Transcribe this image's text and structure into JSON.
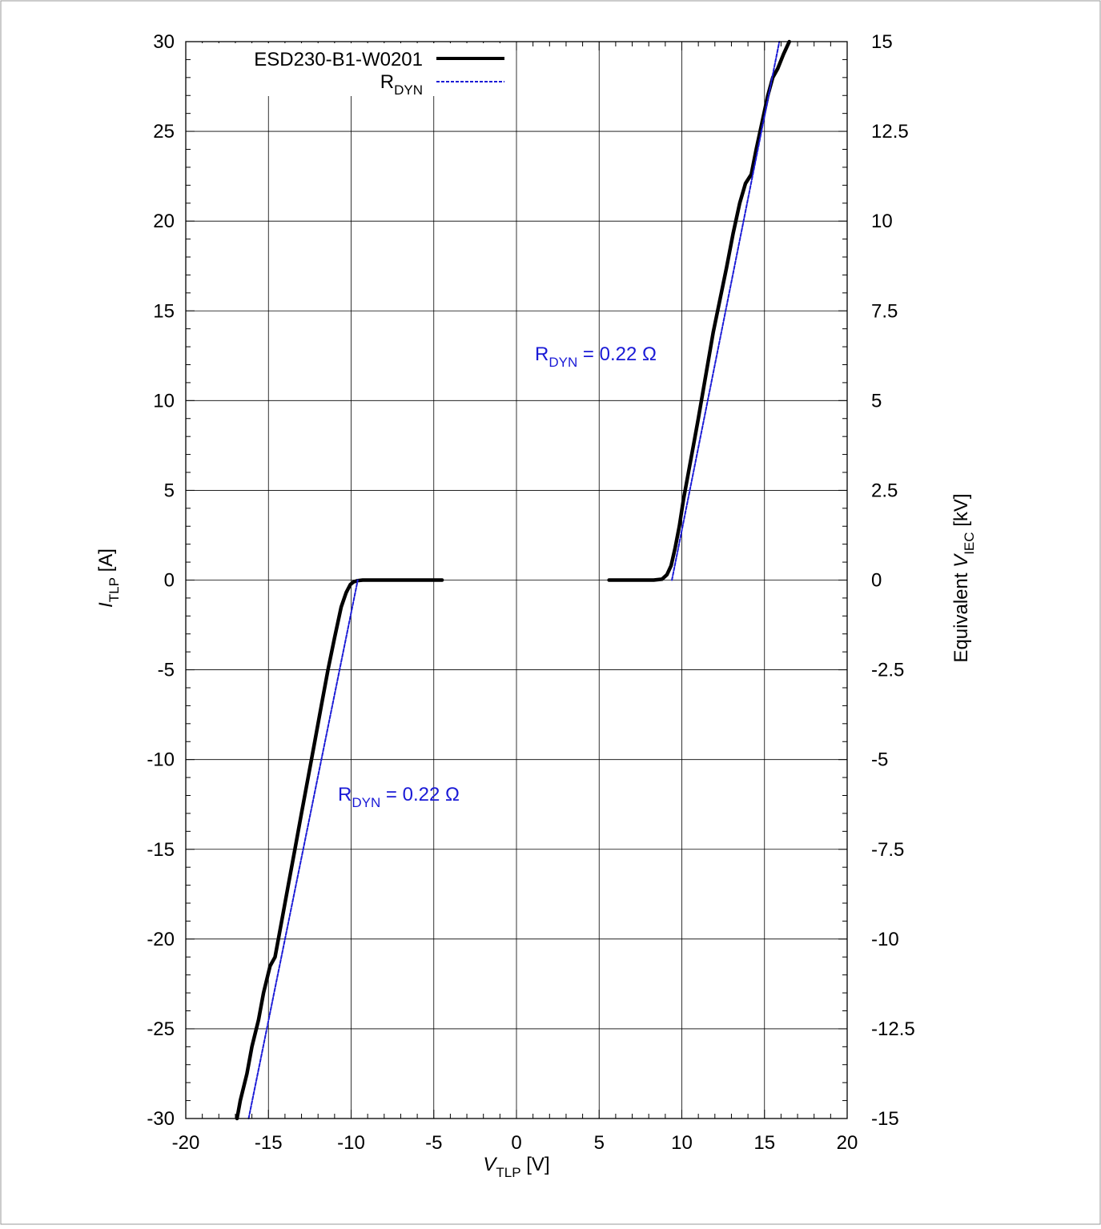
{
  "chart_data": {
    "type": "line",
    "xlabel": {
      "main": "V",
      "sub": "TLP",
      "unit": " [V]"
    },
    "ylabel": {
      "main": "I",
      "sub": "TLP",
      "unit": " [A]"
    },
    "y2label": {
      "prefix": "Equivalent ",
      "main": "V",
      "sub": "IEC",
      "unit": "  [kV]"
    },
    "xlim": [
      -20,
      20
    ],
    "ylim": [
      -30,
      30
    ],
    "y2lim": [
      -15,
      15
    ],
    "x_ticks": [
      -20,
      -15,
      -10,
      -5,
      0,
      5,
      10,
      15,
      20
    ],
    "x_tick_labels": [
      "-20",
      "-15",
      "-10",
      "-5",
      "0",
      "5",
      "10",
      "15",
      "20"
    ],
    "y_ticks": [
      -30,
      -25,
      -20,
      -15,
      -10,
      -5,
      0,
      5,
      10,
      15,
      20,
      25,
      30
    ],
    "y_tick_labels": [
      "-30",
      "-25",
      "-20",
      "-15",
      "-10",
      "-5",
      "0",
      "5",
      "10",
      "15",
      "20",
      "25",
      "30"
    ],
    "y2_ticks": [
      -15,
      -12.5,
      -10,
      -7.5,
      -5,
      -2.5,
      0,
      2.5,
      5,
      7.5,
      10,
      12.5,
      15
    ],
    "y2_tick_labels": [
      "-15",
      "-12.5",
      "-10",
      "-7.5",
      "-5",
      "-2.5",
      "0",
      "2.5",
      "5",
      "7.5",
      "10",
      "12.5",
      "15"
    ],
    "grid": true,
    "legend_position": "top-left",
    "legend": [
      {
        "label": "ESD230-B1-W0201",
        "sub": "",
        "color": "#000000",
        "style": "solid"
      },
      {
        "label": "R",
        "sub": "DYN",
        "color": "#1a1ad6",
        "style": "dashed"
      }
    ],
    "series": [
      {
        "name": "ESD230-B1-W0201",
        "color": "#000000",
        "style": "solid",
        "segments": [
          {
            "x": [
              -16.9,
              -16.7,
              -16.3,
              -16.0,
              -15.6,
              -15.3,
              -14.9,
              -14.6,
              -14.2,
              -13.8,
              -13.4,
              -13.0,
              -12.6,
              -12.2,
              -11.8,
              -11.4,
              -11.0,
              -10.6,
              -10.3,
              -10.05,
              -9.85,
              -9.6,
              -9.3,
              -9.0,
              -8.6,
              -8.0,
              -7.0,
              -6.0,
              -5.0,
              -4.5
            ],
            "y": [
              -30,
              -29,
              -27.5,
              -26,
              -24.5,
              -23,
              -21.5,
              -21,
              -19,
              -17,
              -15,
              -13,
              -11,
              -9,
              -7,
              -5,
              -3.2,
              -1.5,
              -0.7,
              -0.25,
              -0.1,
              -0.03,
              0,
              0,
              0,
              0,
              0,
              0,
              0,
              0
            ]
          },
          {
            "x": [
              5.6,
              6.5,
              7.5,
              8.3,
              8.8,
              9.1,
              9.35,
              9.6,
              9.85,
              10.1,
              10.4,
              10.7,
              11.0,
              11.3,
              11.6,
              11.9,
              12.3,
              12.7,
              13.1,
              13.5,
              13.85,
              14.2,
              14.5,
              14.85,
              15.2,
              15.5,
              15.8,
              16.15,
              16.5
            ],
            "y": [
              0,
              0,
              0,
              0,
              0.05,
              0.3,
              0.8,
              1.8,
              3.0,
              4.5,
              6.0,
              7.5,
              9.0,
              10.6,
              12.2,
              13.8,
              15.6,
              17.4,
              19.3,
              21.0,
              22.1,
              22.6,
              24.0,
              25.5,
              27.0,
              28.0,
              28.5,
              29.3,
              30
            ]
          }
        ]
      },
      {
        "name": "R_DYN",
        "color": "#1a1ad6",
        "style": "dashed",
        "segments": [
          {
            "x": [
              -16.2,
              -9.6
            ],
            "y": [
              -30,
              0
            ]
          },
          {
            "x": [
              9.4,
              15.9
            ],
            "y": [
              0,
              30
            ]
          }
        ]
      }
    ],
    "annotations": [
      {
        "main": "R",
        "sub": "DYN",
        "rest": " = 0.22 Ω",
        "x": 10.5,
        "y": 12.3,
        "color": "#1a1ad6"
      },
      {
        "main": "R",
        "sub": "DYN",
        "rest": " = 0.22 Ω",
        "x": -11.0,
        "y": -12.0,
        "color": "#1a1ad6"
      }
    ]
  }
}
